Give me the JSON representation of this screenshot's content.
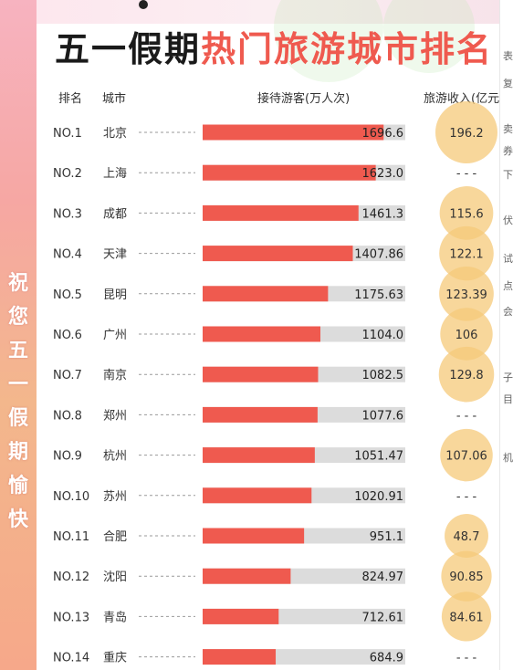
{
  "title": {
    "part1": "五一假期",
    "part2": "热门旅游城市排名"
  },
  "slogan": [
    "祝",
    "您",
    "五",
    "一",
    "假",
    "期",
    "愉",
    "快"
  ],
  "headers": {
    "rank": "排名",
    "city": "城市",
    "visitors": "接待游客(万人次)",
    "revenue": "旅游收入(亿元"
  },
  "chart_data": {
    "type": "bar",
    "title": "五一假期热门旅游城市排名",
    "ranks": [
      "NO.1",
      "NO.2",
      "NO.3",
      "NO.4",
      "NO.5",
      "NO.6",
      "NO.7",
      "NO.8",
      "NO.9",
      "NO.10",
      "NO.11",
      "NO.12",
      "NO.13",
      "NO.14"
    ],
    "categories": [
      "北京",
      "上海",
      "成都",
      "天津",
      "昆明",
      "广州",
      "南京",
      "郑州",
      "杭州",
      "苏州",
      "合肥",
      "沈阳",
      "青岛",
      "重庆"
    ],
    "series": [
      {
        "name": "接待游客(万人次)",
        "values": [
          1696.6,
          1623.0,
          1461.3,
          1407.86,
          1175.63,
          1104.0,
          1082.5,
          1077.6,
          1051.47,
          1020.91,
          951.1,
          824.97,
          712.61,
          684.9
        ],
        "labels": [
          "1696.6",
          "1623.0",
          "1461.3",
          "1407.86",
          "1175.63",
          "1104.0",
          "1082.5",
          "1077.6",
          "1051.47",
          "1020.91",
          "951.1",
          "824.97",
          "712.61",
          "684.9"
        ]
      },
      {
        "name": "旅游收入(亿元",
        "values": [
          196.2,
          null,
          115.6,
          122.1,
          123.39,
          106,
          129.8,
          null,
          107.06,
          null,
          48.7,
          90.85,
          84.61,
          null
        ],
        "labels": [
          "196.2",
          "- - -",
          "115.6",
          "122.1",
          "123.39",
          "106",
          "129.8",
          "- - -",
          "107.06",
          "- - -",
          "48.7",
          "90.85",
          "84.61",
          "- - -"
        ]
      }
    ],
    "xlim": [
      0,
      1900
    ],
    "colors": {
      "bar": "#ef5a4f",
      "track": "#dcdcdc",
      "bubble": "#f5c97a"
    }
  },
  "right_edge_chars": [
    "表",
    "复",
    "卖",
    "券",
    "下",
    "伏",
    "试",
    "点",
    "会",
    "子",
    "目",
    "机"
  ]
}
